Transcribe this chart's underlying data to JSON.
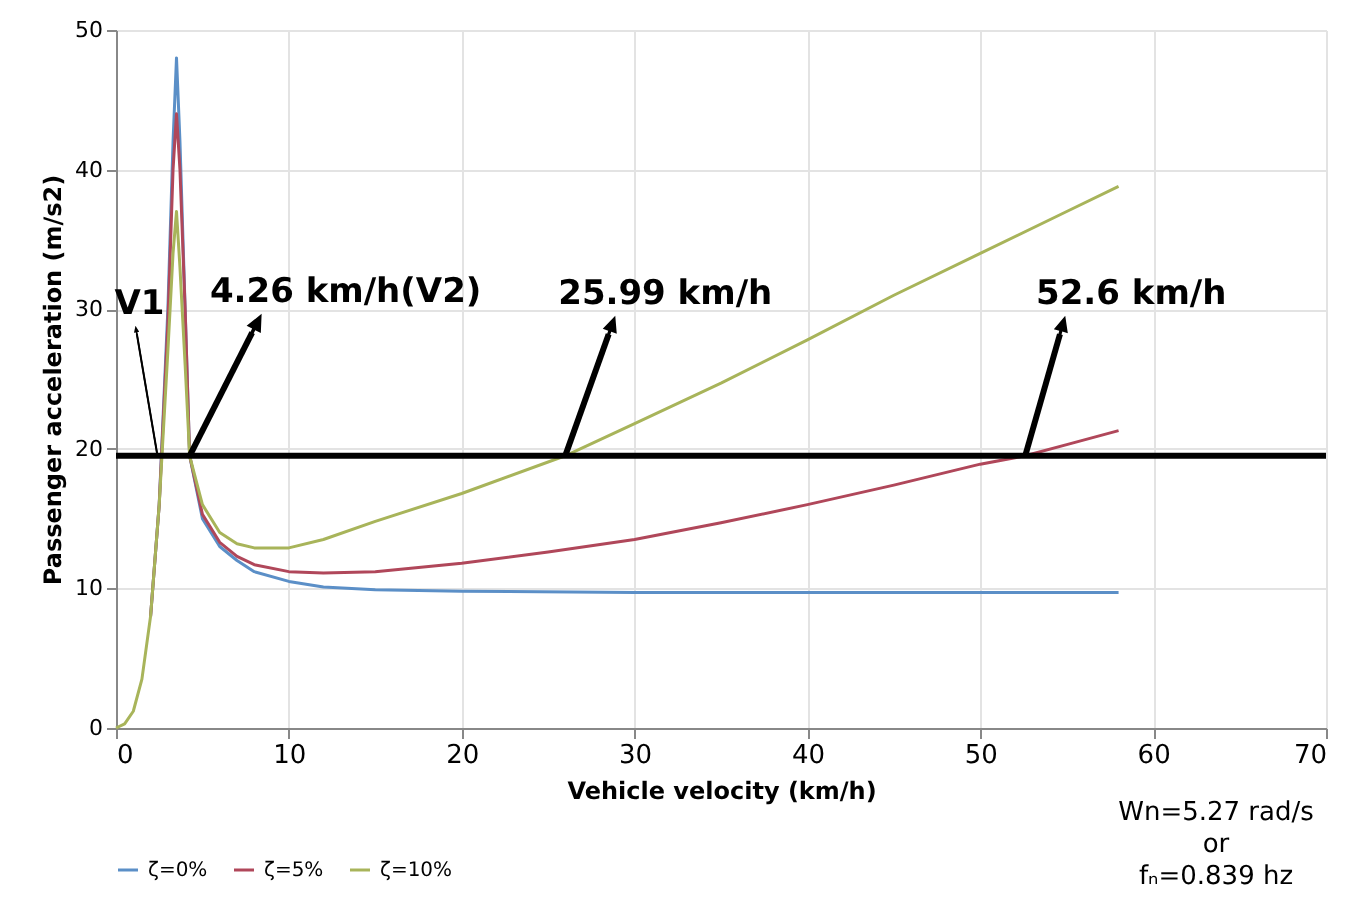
{
  "chart_data": {
    "type": "line",
    "xlabel": "Vehicle velocity (km/h)",
    "ylabel": "Passenger acceleration (m/s2)",
    "xlim": [
      0,
      70
    ],
    "xticks": [
      0,
      10,
      20,
      30,
      40,
      50,
      60,
      70
    ],
    "ylim": [
      0,
      50
    ],
    "yticks": [
      0,
      10,
      20,
      30,
      40,
      50
    ],
    "grid": true,
    "legend": "bottom",
    "marker": "none",
    "line_style": "solid",
    "series": [
      {
        "name": "ζ=0%",
        "color": "#5b8fc7",
        "x": [
          2,
          2.5,
          3,
          3.3,
          3.5,
          3.7,
          4,
          4.26,
          5,
          6,
          7,
          8,
          10,
          12,
          15,
          20,
          30,
          40,
          50,
          58
        ],
        "values": [
          8,
          16,
          30,
          42,
          48,
          42,
          30,
          19.5,
          15,
          13,
          12,
          11.2,
          10.5,
          10.1,
          9.9,
          9.8,
          9.7,
          9.7,
          9.7,
          9.7
        ]
      },
      {
        "name": "ζ=5%",
        "color": "#b0475a",
        "x": [
          2,
          2.5,
          3,
          3.3,
          3.5,
          3.7,
          4,
          4.26,
          5,
          6,
          7,
          8,
          10,
          12,
          15,
          20,
          25,
          30,
          35,
          40,
          45,
          50,
          52.6,
          55,
          58
        ],
        "values": [
          8,
          16,
          29,
          40,
          44,
          40,
          30,
          19.5,
          15.3,
          13.3,
          12.3,
          11.7,
          11.2,
          11.1,
          11.2,
          11.8,
          12.6,
          13.5,
          14.7,
          16,
          17.4,
          18.9,
          19.5,
          20.3,
          21.3
        ]
      },
      {
        "name": "ζ=10%",
        "color": "#a8b45a",
        "x": [
          0,
          0.5,
          1,
          1.5,
          2,
          2.5,
          3,
          3.3,
          3.5,
          3.7,
          4,
          4.26,
          5,
          6,
          7,
          8,
          10,
          12,
          15,
          20,
          25.99,
          30,
          35,
          40,
          45,
          50,
          55,
          58
        ],
        "values": [
          0,
          0.3,
          1.2,
          3.5,
          8,
          16,
          27,
          34,
          37,
          33,
          26,
          19.5,
          16,
          14,
          13.2,
          12.9,
          12.9,
          13.5,
          14.8,
          16.8,
          19.5,
          21.8,
          24.7,
          27.8,
          31,
          34,
          37,
          38.8
        ]
      }
    ],
    "ref_lines": [
      {
        "axis": "y",
        "value": 19.5,
        "color": "#000000"
      }
    ],
    "annotations": [
      {
        "text": "V1",
        "x": 2.4,
        "y": 19.5
      },
      {
        "text": "4.26 km/h(V2)",
        "x": 4.26,
        "y": 19.5
      },
      {
        "text": "25.99 km/h",
        "x": 25.99,
        "y": 19.5
      },
      {
        "text": "52.6 km/h",
        "x": 52.6,
        "y": 19.5
      },
      "Wn=5.27 rad/s",
      "or",
      "fₙ=0.839 hz"
    ]
  }
}
